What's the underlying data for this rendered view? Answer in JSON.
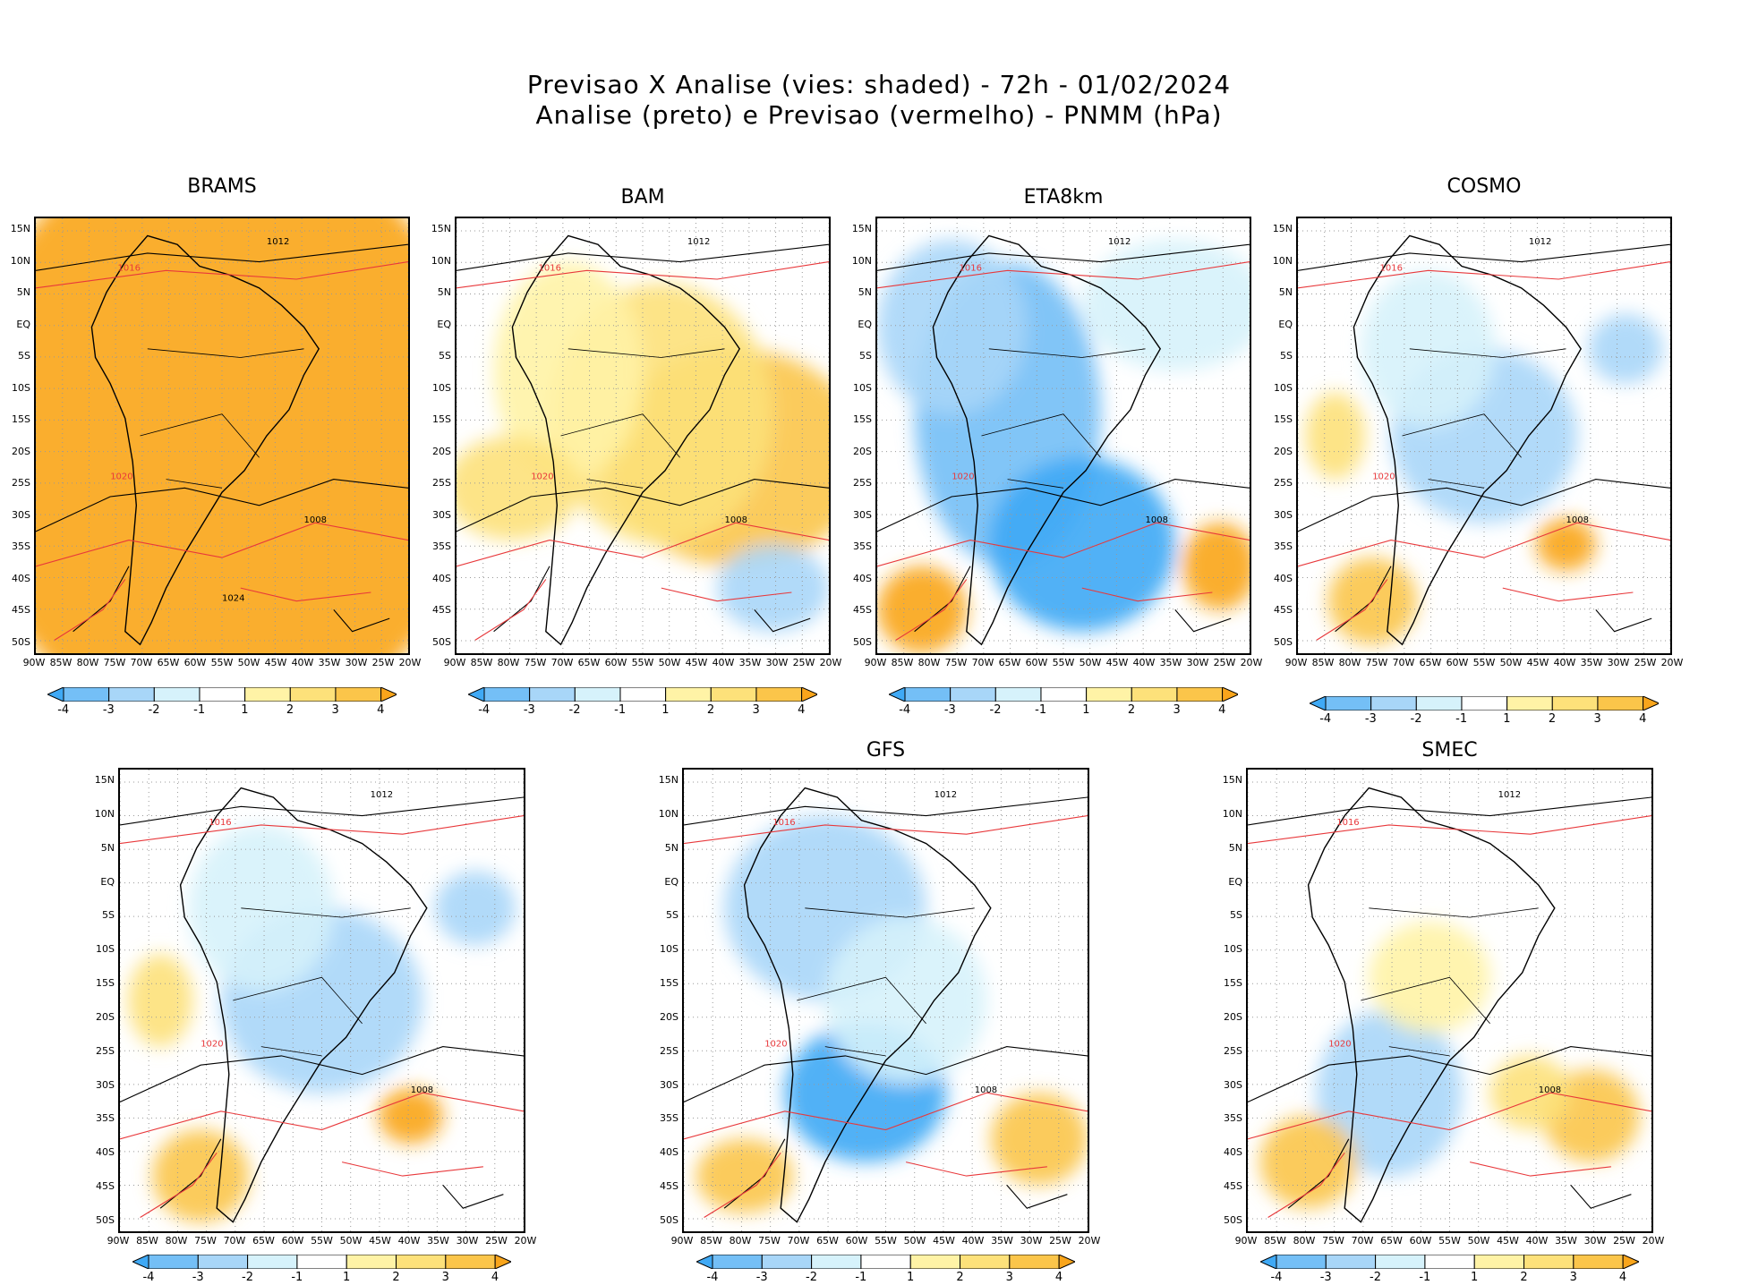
{
  "header": {
    "line1": "Previsao X Analise (vies: shaded) - 72h - 01/02/2024",
    "line2": "Analise (preto) e Previsao (vermelho) - PNMM (hPa)"
  },
  "axis": {
    "lat_labels": [
      "15N",
      "10N",
      "5N",
      "EQ",
      "5S",
      "10S",
      "15S",
      "20S",
      "25S",
      "30S",
      "35S",
      "40S",
      "45S",
      "50S"
    ],
    "lon_labels": [
      "90W",
      "85W",
      "80W",
      "75W",
      "70W",
      "65W",
      "60W",
      "55W",
      "50W",
      "45W",
      "40W",
      "35W",
      "30W",
      "25W",
      "20W"
    ]
  },
  "colorbar": {
    "labels": [
      "-4",
      "-3",
      "-2",
      "-1",
      "1",
      "2",
      "3",
      "4"
    ],
    "colors": [
      "#3fa9f5",
      "#74bff6",
      "#a8d6f8",
      "#d6f2fb",
      "#ffffff",
      "#fff3a6",
      "#fde17a",
      "#fbc54a",
      "#f9a51b"
    ]
  },
  "contour_colors": {
    "analysis": "#000000",
    "forecast": "#e8383b"
  },
  "panels": [
    {
      "id": "brams",
      "label": "BRAMS",
      "bias": "positive_high",
      "isobars": [
        "1012",
        "1016",
        "1008",
        "1020",
        "1024"
      ]
    },
    {
      "id": "bam",
      "label": "BAM",
      "bias": "positive",
      "isobars": [
        "1012",
        "1016",
        "1008",
        "1020"
      ]
    },
    {
      "id": "eta8km",
      "label": "ETA8km",
      "bias": "negative",
      "isobars": [
        "1012",
        "1016",
        "1008",
        "1020"
      ]
    },
    {
      "id": "cosmo",
      "label": "COSMO",
      "bias": "mixed",
      "isobars": [
        "1012",
        "1016",
        "1008",
        "1020"
      ]
    },
    {
      "id": "p5",
      "label": "",
      "bias": "mixed",
      "isobars": [
        "1012",
        "1016",
        "1008",
        "1020"
      ]
    },
    {
      "id": "gfs",
      "label": "GFS",
      "bias": "slightly_negative",
      "isobars": [
        "1012",
        "1016",
        "1008",
        "1020"
      ]
    },
    {
      "id": "smec",
      "label": "SMEC",
      "bias": "mixed_small",
      "isobars": [
        "1012",
        "1016",
        "1008",
        "1020"
      ]
    }
  ]
}
